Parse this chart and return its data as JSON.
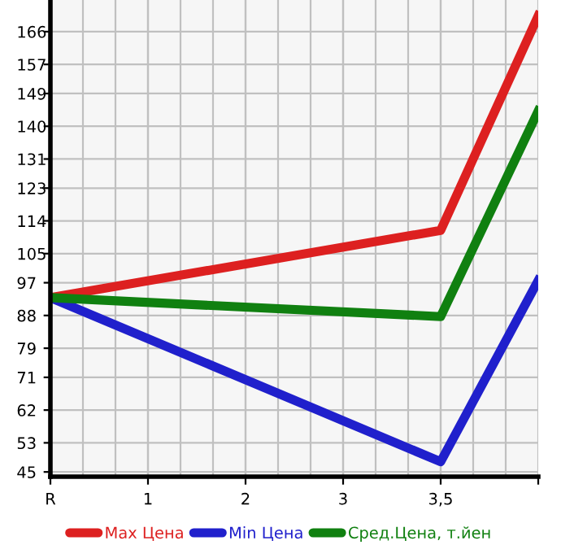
{
  "chart_data": {
    "type": "line",
    "categories": [
      "R",
      "1",
      "2",
      "3",
      "3,5",
      null
    ],
    "series": [
      {
        "name": "Max Цена",
        "color": "#dd2020",
        "values": [
          92.9,
          null,
          null,
          null,
          111.4,
          170.4
        ]
      },
      {
        "name": "Min Цена",
        "color": "#2020cc",
        "values": [
          92.9,
          null,
          null,
          null,
          47.8,
          97.6
        ]
      },
      {
        "name": "Сред.Цена, т.йен",
        "color": "#108010",
        "values": [
          92.9,
          null,
          null,
          null,
          87.7,
          144.2
        ]
      }
    ],
    "ylim": [
      43.7,
      174.7
    ],
    "yticks": [
      45,
      53,
      62,
      71,
      79,
      88,
      97,
      105,
      114,
      123,
      131,
      140,
      149,
      157,
      166
    ],
    "grid": true,
    "legend": "bottom",
    "marker": "none",
    "line_style": "solid"
  }
}
